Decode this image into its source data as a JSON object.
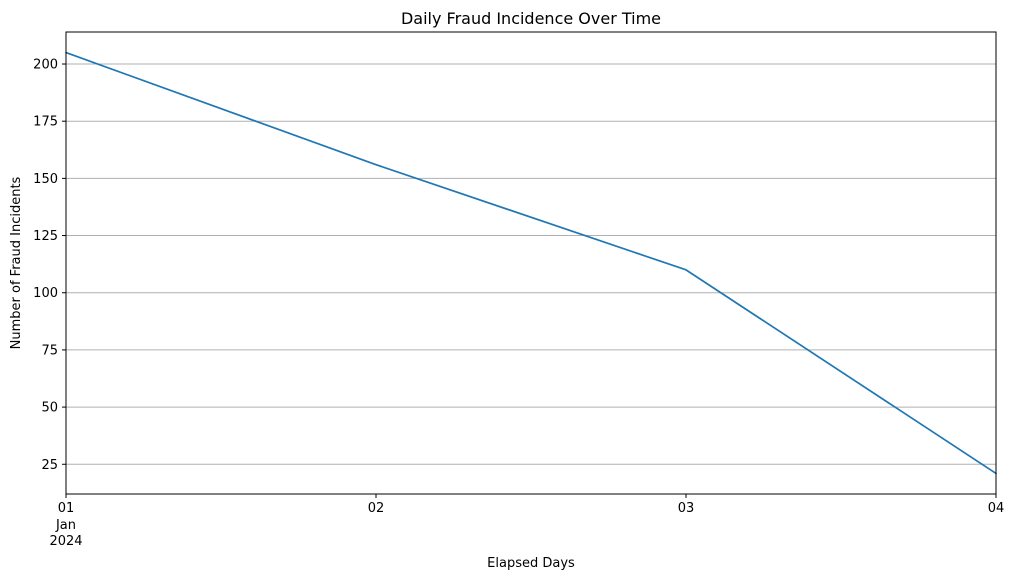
{
  "chart_data": {
    "type": "line",
    "title": "Daily Fraud Incidence Over Time",
    "xlabel": "Elapsed Days",
    "ylabel": "Number of Fraud Incidents",
    "x": [
      "2024-01-01",
      "2024-01-02",
      "2024-01-03",
      "2024-01-04"
    ],
    "x_tick_labels": [
      "01",
      "02",
      "03",
      "04"
    ],
    "x_tick_sublabels": [
      "Jan",
      "2024"
    ],
    "series": [
      {
        "values": [
          205,
          156,
          110,
          21
        ],
        "color": "#1f77b4"
      }
    ],
    "xlim": [
      "2024-01-01",
      "2024-01-04"
    ],
    "ylim": [
      12,
      214
    ],
    "y_ticks": [
      25,
      50,
      75,
      100,
      125,
      150,
      175,
      200
    ],
    "grid": "horizontal",
    "grid_color": "#b0b0b0",
    "legend": "none"
  }
}
